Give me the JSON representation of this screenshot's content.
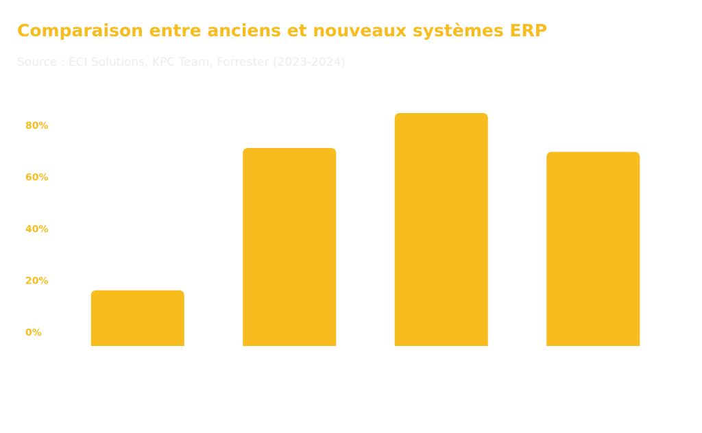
{
  "title": "Comparaison entre anciens et nouveaux systèmes ERP",
  "subtitle": "Source : ECI Solutions, KPC Team, Forrester (2023-2024)",
  "colors": {
    "accent": "#f7bc1d",
    "subtitle": "#ececec",
    "background": "#ffffff"
  },
  "chart_data": {
    "type": "bar",
    "categories": [
      "",
      "",
      "",
      ""
    ],
    "values": [
      16.5,
      71.5,
      85,
      70
    ],
    "yticks": [
      0,
      20,
      40,
      60,
      80
    ],
    "ytick_labels": [
      "0%",
      "20%",
      "40%",
      "60%",
      "80%"
    ],
    "ylim": [
      -5,
      85
    ],
    "grid": false,
    "legend": "none"
  }
}
